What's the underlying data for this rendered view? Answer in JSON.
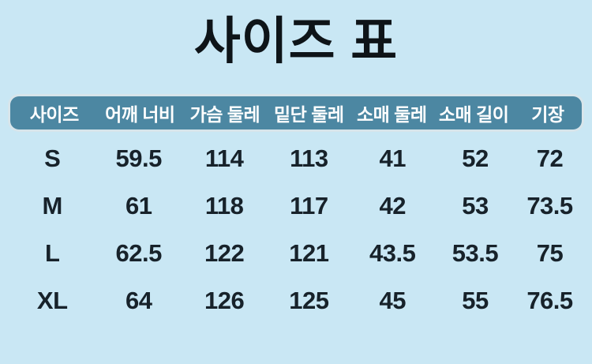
{
  "title": "사이즈 표",
  "theme": {
    "background_color": "#c9e7f4",
    "header_background_color": "#4c87a2",
    "header_text_color": "#ffffff",
    "body_text_color": "#17222a"
  },
  "chart_data": {
    "type": "table",
    "title": "사이즈 표",
    "columns": [
      "사이즈",
      "어깨 너비",
      "가슴 둘레",
      "밑단 둘레",
      "소매 둘레",
      "소매 길이",
      "기장"
    ],
    "rows": [
      [
        "S",
        "59.5",
        "114",
        "113",
        "41",
        "52",
        "72"
      ],
      [
        "M",
        "61",
        "118",
        "117",
        "42",
        "53",
        "73.5"
      ],
      [
        "L",
        "62.5",
        "122",
        "121",
        "43.5",
        "53.5",
        "75"
      ],
      [
        "XL",
        "64",
        "126",
        "125",
        "45",
        "55",
        "76.5"
      ]
    ]
  }
}
